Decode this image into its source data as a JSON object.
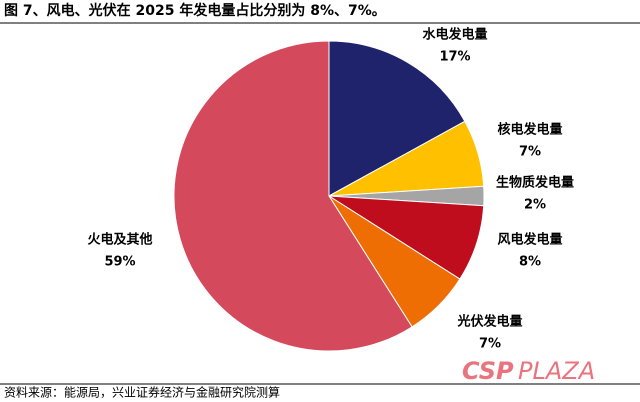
{
  "chart_data": {
    "type": "pie",
    "title": "图 7、风电、光伏在 2025 年发电量占比分别为 8%、7%。",
    "categories": [
      "水电发电量",
      "核电发电量",
      "生物质发电量",
      "风电发电量",
      "光伏发电量",
      "火电及其他"
    ],
    "values": [
      17,
      7,
      2,
      8,
      7,
      59
    ],
    "value_labels": [
      "17%",
      "7%",
      "2%",
      "8%",
      "7%",
      "59%"
    ],
    "colors": [
      "#1f236b",
      "#ffc000",
      "#a5a5a5",
      "#c00d1e",
      "#ee6e04",
      "#d44a5c"
    ],
    "source": "资料来源：能源局，兴业证券经济与金融研究院测算",
    "watermark": [
      "CSP",
      "PLAZA"
    ]
  }
}
